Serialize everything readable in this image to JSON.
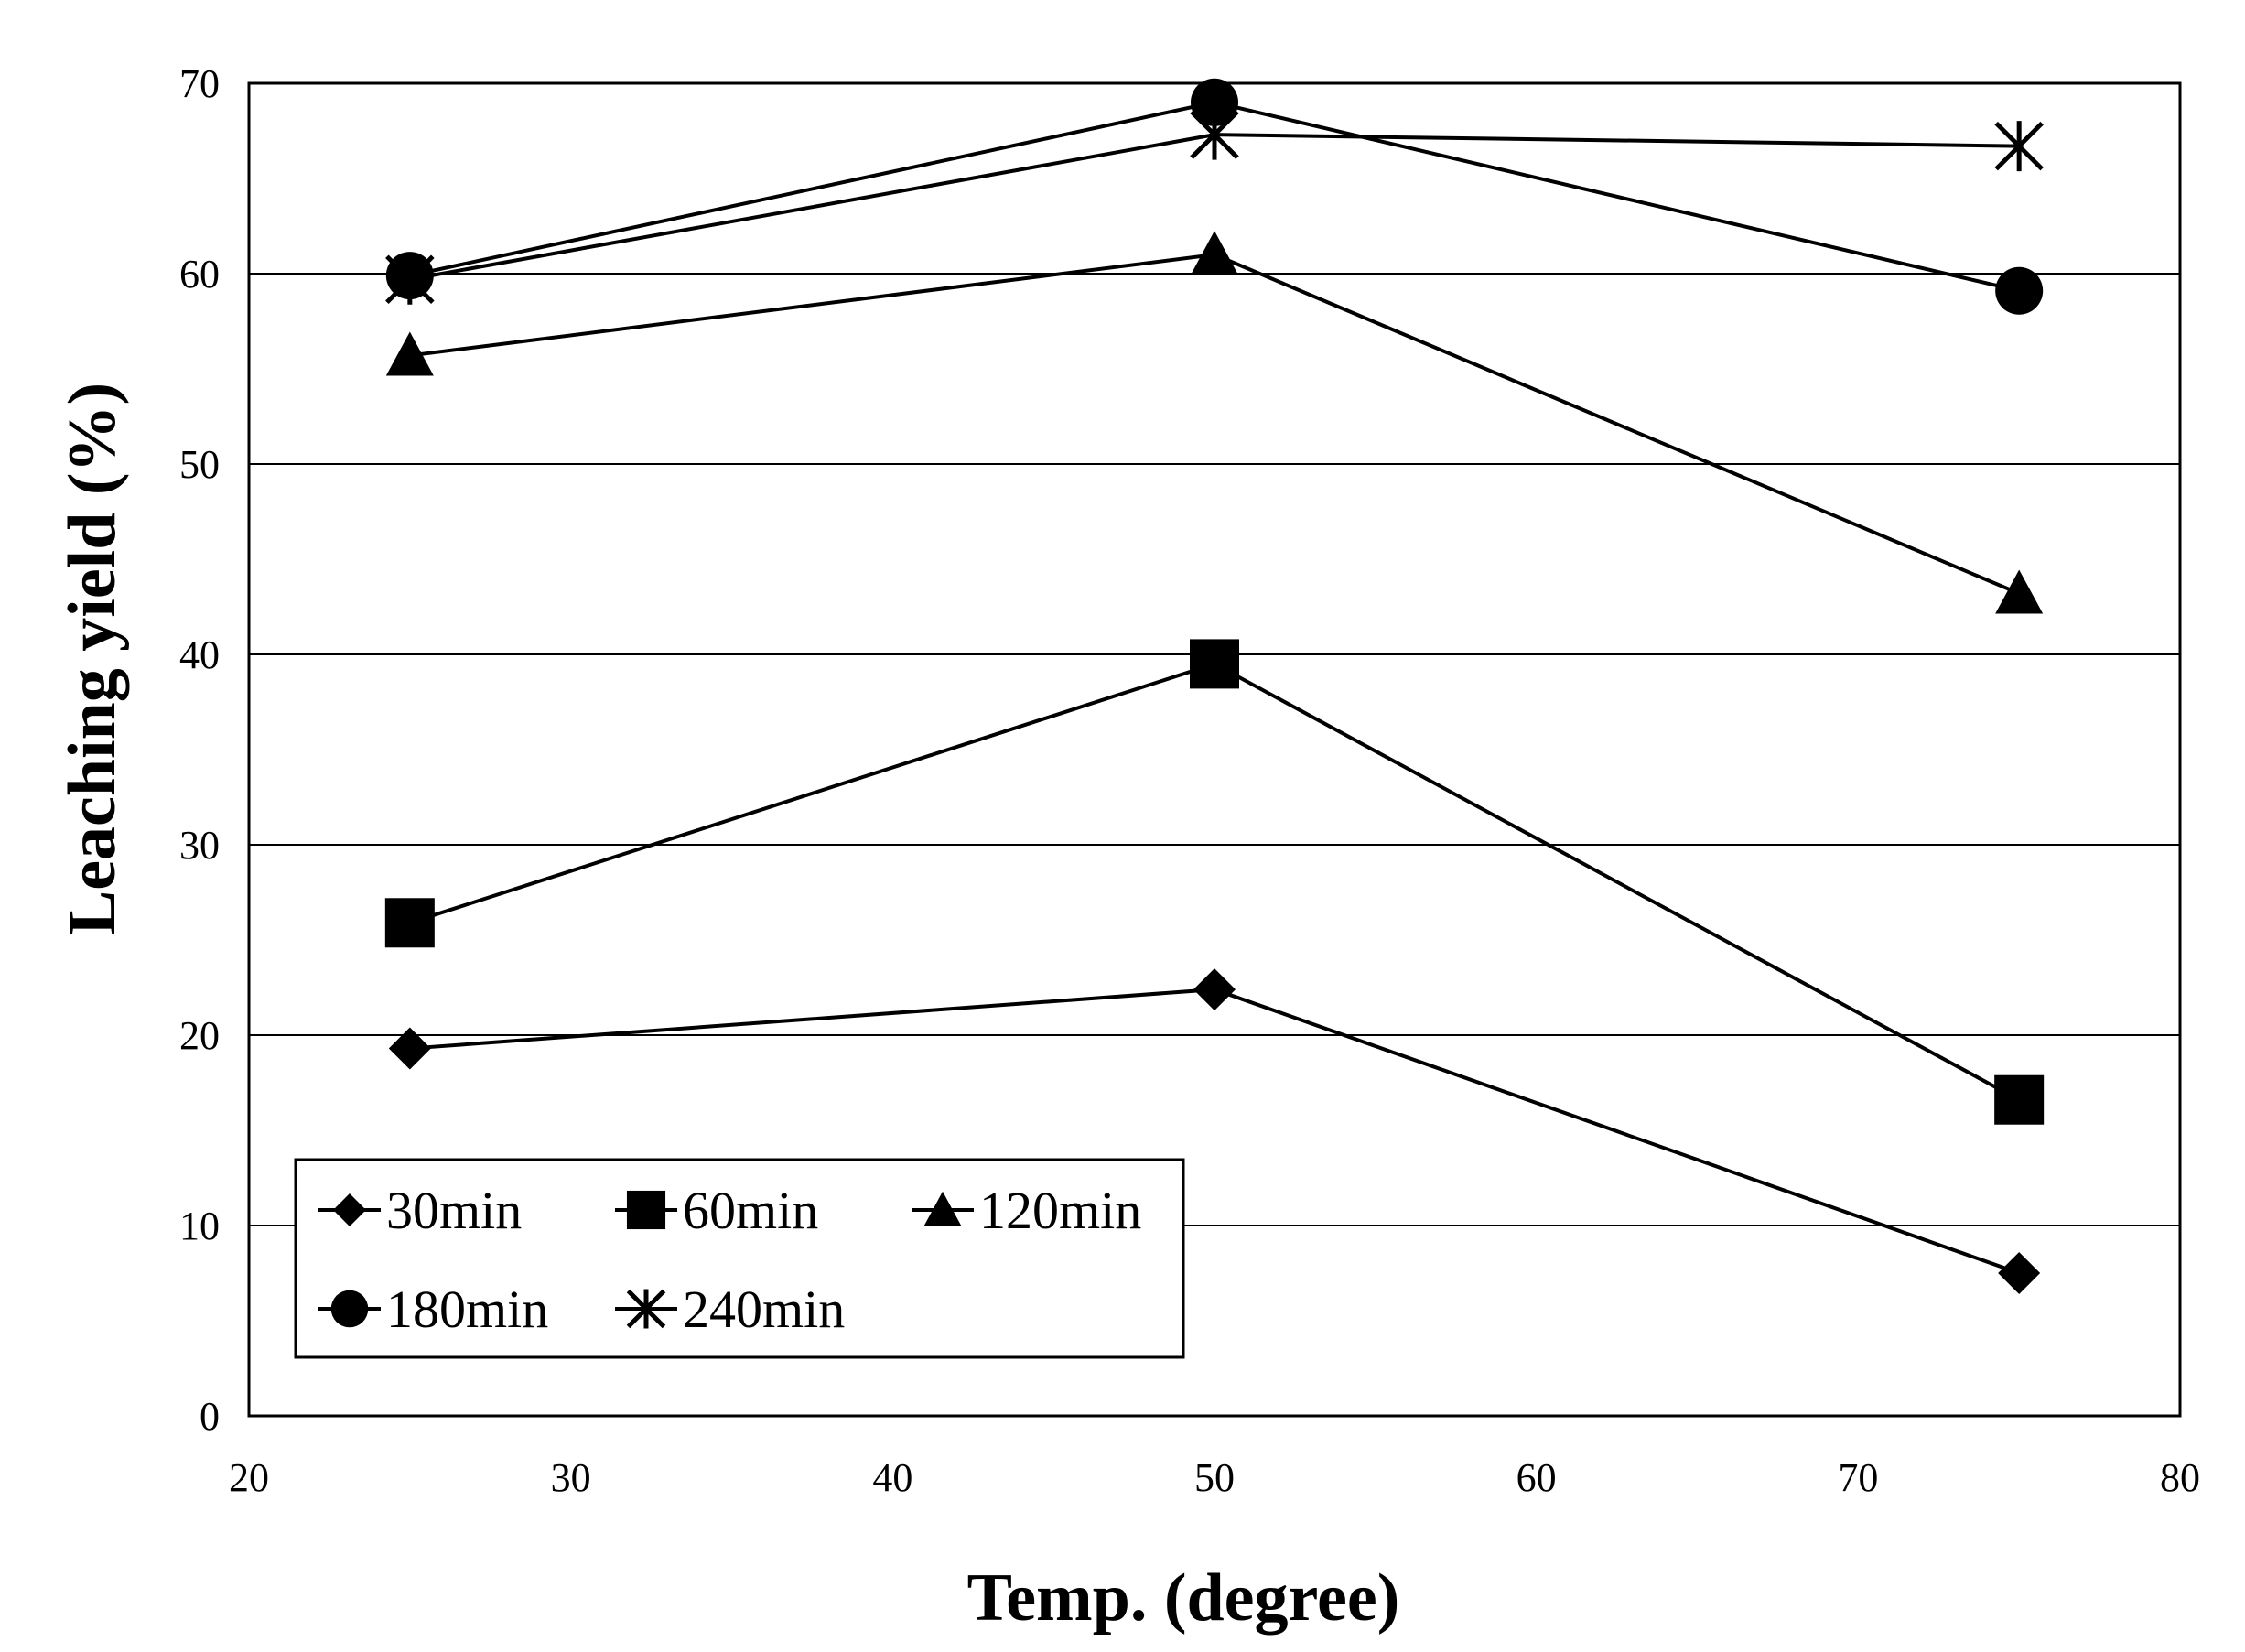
{
  "chart_data": {
    "type": "line",
    "title": "",
    "xlabel": "Temp. (degree)",
    "ylabel": "Leaching yield (%)",
    "xlim": [
      20,
      80
    ],
    "ylim": [
      0,
      70
    ],
    "xticks": [
      20,
      30,
      40,
      50,
      60,
      70,
      80
    ],
    "yticks": [
      0,
      10,
      20,
      30,
      40,
      50,
      60,
      70
    ],
    "grid": "horizontal",
    "legend_position": "bottom-left",
    "x": [
      25,
      50,
      75
    ],
    "series": [
      {
        "name": "30min",
        "marker": "diamond",
        "values": [
          19.3,
          22.4,
          7.5
        ]
      },
      {
        "name": "60min",
        "marker": "square",
        "values": [
          25.9,
          39.5,
          16.6
        ]
      },
      {
        "name": "120min",
        "marker": "triangle",
        "values": [
          55.7,
          61.0,
          43.2
        ]
      },
      {
        "name": "180min",
        "marker": "circle",
        "values": [
          59.9,
          69.0,
          59.1
        ]
      },
      {
        "name": "240min",
        "marker": "asterisk",
        "values": [
          59.7,
          67.3,
          66.7
        ]
      }
    ]
  }
}
